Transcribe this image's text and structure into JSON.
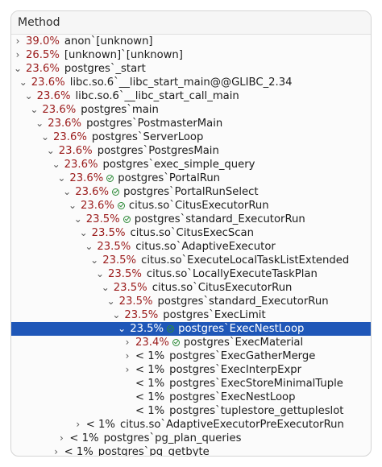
{
  "header": {
    "title": "Method"
  },
  "rows": [
    {
      "depth": 0,
      "toggle": "›",
      "pct": "39.0%",
      "name": "anon`[unknown]"
    },
    {
      "depth": 0,
      "toggle": "›",
      "pct": "26.5%",
      "name": "[unknown]`[unknown]"
    },
    {
      "depth": 0,
      "toggle": "⌄",
      "pct": "23.6%",
      "name": "postgres`_start"
    },
    {
      "depth": 1,
      "toggle": "⌄",
      "pct": "23.6%",
      "name": "libc.so.6`__libc_start_main@@GLIBC_2.34"
    },
    {
      "depth": 2,
      "toggle": "⌄",
      "pct": "23.6%",
      "name": "libc.so.6`__libc_start_call_main"
    },
    {
      "depth": 3,
      "toggle": "⌄",
      "pct": "23.6%",
      "name": "postgres`main"
    },
    {
      "depth": 4,
      "toggle": "⌄",
      "pct": "23.6%",
      "name": "postgres`PostmasterMain"
    },
    {
      "depth": 5,
      "toggle": "⌄",
      "pct": "23.6%",
      "name": "postgres`ServerLoop"
    },
    {
      "depth": 6,
      "toggle": "⌄",
      "pct": "23.6%",
      "name": "postgres`PostgresMain"
    },
    {
      "depth": 7,
      "toggle": "⌄",
      "pct": "23.6%",
      "name": "postgres`exec_simple_query"
    },
    {
      "depth": 8,
      "toggle": "⌄",
      "pct": "23.6%",
      "icon": true,
      "name": "postgres`PortalRun"
    },
    {
      "depth": 9,
      "toggle": "⌄",
      "pct": "23.6%",
      "icon": true,
      "name": "postgres`PortalRunSelect"
    },
    {
      "depth": 10,
      "toggle": "⌄",
      "pct": "23.6%",
      "icon": true,
      "name": "citus.so`CitusExecutorRun"
    },
    {
      "depth": 11,
      "toggle": "⌄",
      "pct": "23.5%",
      "icon": true,
      "name": "postgres`standard_ExecutorRun"
    },
    {
      "depth": 12,
      "toggle": "⌄",
      "pct": "23.5%",
      "name": "citus.so`CitusExecScan"
    },
    {
      "depth": 13,
      "toggle": "⌄",
      "pct": "23.5%",
      "name": "citus.so`AdaptiveExecutor"
    },
    {
      "depth": 14,
      "toggle": "⌄",
      "pct": "23.5%",
      "name": "citus.so`ExecuteLocalTaskListExtended"
    },
    {
      "depth": 15,
      "toggle": "⌄",
      "pct": "23.5%",
      "name": "citus.so`LocallyExecuteTaskPlan"
    },
    {
      "depth": 16,
      "toggle": "⌄",
      "pct": "23.5%",
      "name": "citus.so`CitusExecutorRun"
    },
    {
      "depth": 17,
      "toggle": "⌄",
      "pct": "23.5%",
      "name": "postgres`standard_ExecutorRun"
    },
    {
      "depth": 18,
      "toggle": "⌄",
      "pct": "23.5%",
      "name": "postgres`ExecLimit"
    },
    {
      "depth": 19,
      "toggle": "⌄",
      "pct": "23.5%",
      "icon": true,
      "name": "postgres`ExecNestLoop",
      "selected": true
    },
    {
      "depth": 20,
      "toggle": "›",
      "pct": "23.4%",
      "icon": true,
      "name": "postgres`ExecMaterial"
    },
    {
      "depth": 20,
      "toggle": "›",
      "pct": "< 1%",
      "small": true,
      "name": "postgres`ExecGatherMerge"
    },
    {
      "depth": 20,
      "toggle": "›",
      "pct": "< 1%",
      "small": true,
      "name": "postgres`ExecInterpExpr"
    },
    {
      "depth": 20,
      "toggle": "",
      "pct": "< 1%",
      "small": true,
      "name": "postgres`ExecStoreMinimalTuple"
    },
    {
      "depth": 20,
      "toggle": "",
      "pct": "< 1%",
      "small": true,
      "name": "postgres`ExecNestLoop"
    },
    {
      "depth": 20,
      "toggle": "",
      "pct": "< 1%",
      "small": true,
      "name": "postgres`tuplestore_gettupleslot"
    },
    {
      "depth": 11,
      "toggle": "›",
      "pct": "< 1%",
      "small": true,
      "name": "citus.so`AdaptiveExecutorPreExecutorRun"
    },
    {
      "depth": 8,
      "toggle": "›",
      "pct": "< 1%",
      "small": true,
      "name": "postgres`pg_plan_queries"
    },
    {
      "depth": 7,
      "toggle": "›",
      "pct": "< 1%",
      "small": true,
      "name": "postgres`pq_getbyte"
    }
  ]
}
